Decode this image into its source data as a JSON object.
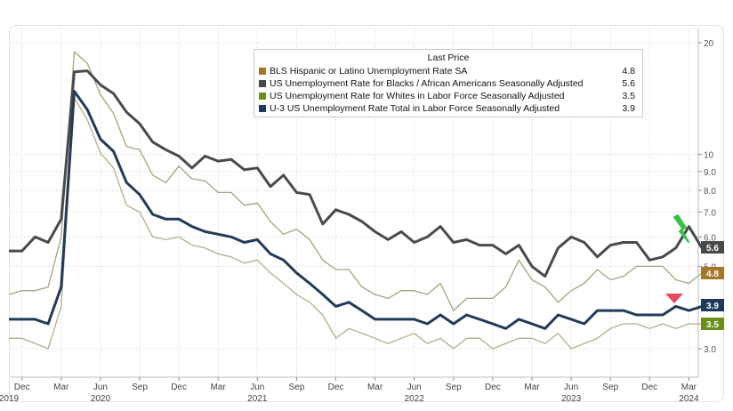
{
  "chart_data": {
    "type": "line",
    "title": "",
    "xlabel": "",
    "ylabel": "",
    "y_scale": "log",
    "ylim": [
      2.6,
      21
    ],
    "grid": true,
    "legend_position": "top-center",
    "legend_title": "Last Price",
    "x_tick_labels": [
      {
        "label": "Dec",
        "date": "2019-12"
      },
      {
        "label": "Mar",
        "date": "2020-03"
      },
      {
        "label": "Jun",
        "date": "2020-06"
      },
      {
        "label": "Sep",
        "date": "2020-09"
      },
      {
        "label": "Dec",
        "date": "2020-12"
      },
      {
        "label": "Mar",
        "date": "2021-03"
      },
      {
        "label": "Jun",
        "date": "2021-06"
      },
      {
        "label": "Sep",
        "date": "2021-09"
      },
      {
        "label": "Dec",
        "date": "2021-12"
      },
      {
        "label": "Mar",
        "date": "2022-03"
      },
      {
        "label": "Jun",
        "date": "2022-06"
      },
      {
        "label": "Sep",
        "date": "2022-09"
      },
      {
        "label": "Dec",
        "date": "2022-12"
      },
      {
        "label": "Mar",
        "date": "2023-03"
      },
      {
        "label": "Jun",
        "date": "2023-06"
      },
      {
        "label": "Sep",
        "date": "2023-09"
      },
      {
        "label": "Dec",
        "date": "2023-12"
      },
      {
        "label": "Mar",
        "date": "2024-03"
      }
    ],
    "year_labels": [
      {
        "label": "2019",
        "date": "2019-11"
      },
      {
        "label": "2020",
        "date": "2020-06"
      },
      {
        "label": "2021",
        "date": "2021-06"
      },
      {
        "label": "2022",
        "date": "2022-06"
      },
      {
        "label": "2023",
        "date": "2023-06"
      },
      {
        "label": "2024",
        "date": "2024-03"
      }
    ],
    "y_ticks": [
      {
        "label": "20",
        "value": 20
      },
      {
        "label": "10",
        "value": 10
      },
      {
        "label": "9.0",
        "value": 9
      },
      {
        "label": "8.0",
        "value": 8
      },
      {
        "label": "7.0",
        "value": 7
      },
      {
        "label": "6.0",
        "value": 6
      },
      {
        "label": "5.0",
        "value": 5
      },
      {
        "label": "3.0",
        "value": 3
      }
    ],
    "x": [
      "2019-11",
      "2019-12",
      "2020-01",
      "2020-02",
      "2020-03",
      "2020-04",
      "2020-05",
      "2020-06",
      "2020-07",
      "2020-08",
      "2020-09",
      "2020-10",
      "2020-11",
      "2020-12",
      "2021-01",
      "2021-02",
      "2021-03",
      "2021-04",
      "2021-05",
      "2021-06",
      "2021-07",
      "2021-08",
      "2021-09",
      "2021-10",
      "2021-11",
      "2021-12",
      "2022-01",
      "2022-02",
      "2022-03",
      "2022-04",
      "2022-05",
      "2022-06",
      "2022-07",
      "2022-08",
      "2022-09",
      "2022-10",
      "2022-11",
      "2022-12",
      "2023-01",
      "2023-02",
      "2023-03",
      "2023-04",
      "2023-05",
      "2023-06",
      "2023-07",
      "2023-08",
      "2023-09",
      "2023-10",
      "2023-11",
      "2023-12",
      "2024-01",
      "2024-02",
      "2024-03",
      "2024-04"
    ],
    "series": [
      {
        "name": "BLS Hispanic or Latino Unemployment Rate SA",
        "color": "#a6a27e",
        "last_value": "4.8",
        "label_color": "#a6772a",
        "values": [
          4.2,
          4.3,
          4.3,
          4.4,
          6.0,
          18.9,
          17.6,
          14.5,
          12.9,
          10.5,
          10.3,
          8.8,
          8.4,
          9.3,
          8.6,
          8.5,
          7.9,
          7.9,
          7.3,
          7.4,
          6.6,
          6.1,
          6.3,
          5.9,
          5.2,
          4.9,
          4.9,
          4.4,
          4.2,
          4.1,
          4.3,
          4.3,
          4.2,
          4.5,
          3.8,
          4.1,
          4.1,
          4.1,
          4.4,
          5.2,
          4.6,
          4.4,
          4.0,
          4.3,
          4.5,
          4.9,
          4.6,
          4.7,
          5.0,
          5.0,
          5.0,
          4.6,
          4.5,
          4.8
        ]
      },
      {
        "name": "US Unemployment Rate for Blacks / African Americans Seasonally Adjusted",
        "color": "#4a4a4a",
        "last_value": "5.6",
        "label_color": "#4a4a4a",
        "values": [
          5.5,
          5.5,
          6.0,
          5.8,
          6.7,
          16.7,
          16.8,
          15.4,
          14.6,
          13.0,
          12.1,
          10.8,
          10.3,
          9.9,
          9.2,
          9.9,
          9.6,
          9.7,
          9.1,
          9.2,
          8.2,
          8.8,
          7.9,
          7.8,
          6.5,
          7.1,
          6.9,
          6.6,
          6.2,
          5.9,
          6.2,
          5.8,
          6.0,
          6.4,
          5.8,
          5.9,
          5.7,
          5.7,
          5.4,
          5.7,
          5.0,
          4.7,
          5.6,
          6.0,
          5.8,
          5.3,
          5.7,
          5.8,
          5.8,
          5.2,
          5.3,
          5.6,
          6.4,
          5.6
        ]
      },
      {
        "name": "US Unemployment Rate for Whites in Labor Force Seasonally Adjusted",
        "color": "#b3ae8c",
        "last_value": "3.5",
        "label_color": "#6b8f1e",
        "values": [
          3.2,
          3.2,
          3.1,
          3.0,
          3.9,
          14.2,
          12.4,
          10.1,
          9.2,
          7.3,
          7.0,
          6.0,
          5.9,
          6.0,
          5.7,
          5.6,
          5.4,
          5.3,
          5.1,
          5.2,
          4.8,
          4.5,
          4.2,
          4.0,
          3.7,
          3.2,
          3.4,
          3.3,
          3.2,
          3.1,
          3.2,
          3.3,
          3.1,
          3.2,
          3.0,
          3.2,
          3.2,
          3.0,
          3.1,
          3.2,
          3.2,
          3.1,
          3.3,
          3.0,
          3.1,
          3.2,
          3.4,
          3.5,
          3.5,
          3.4,
          3.5,
          3.4,
          3.5,
          3.5
        ]
      },
      {
        "name": "U-3 US Unemployment Rate Total in Labor Force Seasonally Adjusted",
        "color": "#233a59",
        "last_value": "3.9",
        "label_color": "#1d3a5e",
        "values": [
          3.6,
          3.6,
          3.6,
          3.5,
          4.4,
          14.8,
          13.2,
          11.0,
          10.2,
          8.4,
          7.8,
          6.9,
          6.7,
          6.7,
          6.4,
          6.2,
          6.1,
          6.0,
          5.8,
          5.9,
          5.4,
          5.2,
          4.8,
          4.5,
          4.2,
          3.9,
          4.0,
          3.8,
          3.6,
          3.6,
          3.6,
          3.6,
          3.5,
          3.7,
          3.5,
          3.7,
          3.6,
          3.5,
          3.4,
          3.6,
          3.5,
          3.4,
          3.7,
          3.6,
          3.5,
          3.8,
          3.8,
          3.8,
          3.7,
          3.7,
          3.7,
          3.9,
          3.8,
          3.9
        ]
      }
    ],
    "annotations": [
      {
        "type": "down-arrow",
        "color": "#31c447",
        "series": "US Unemployment Rate for Blacks / African Americans Seasonally Adjusted"
      },
      {
        "type": "triangle-down",
        "color": "#e84a5f",
        "series": "U-3 US Unemployment Rate Total in Labor Force Seasonally Adjusted"
      }
    ]
  }
}
